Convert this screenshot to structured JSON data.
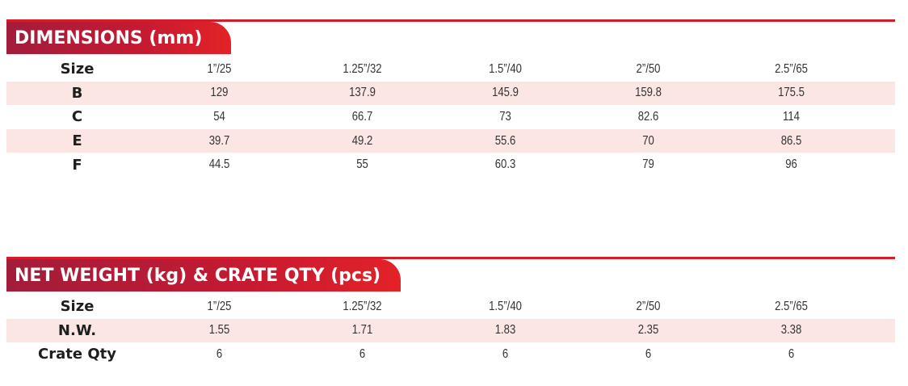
{
  "dimensions": {
    "title": "DIMENSIONS (mm)",
    "rows": [
      {
        "label": "Size",
        "values": [
          "1”/25",
          "1.25”/32",
          "1.5”/40",
          "2”/50",
          "2.5”/65"
        ],
        "shaded": false
      },
      {
        "label": "B",
        "values": [
          "129",
          "137.9",
          "145.9",
          "159.8",
          "175.5"
        ],
        "shaded": true
      },
      {
        "label": "C",
        "values": [
          "54",
          "66.7",
          "73",
          "82.6",
          "114"
        ],
        "shaded": false
      },
      {
        "label": "E",
        "values": [
          "39.7",
          "49.2",
          "55.6",
          "70",
          "86.5"
        ],
        "shaded": true
      },
      {
        "label": "F",
        "values": [
          "44.5",
          "55",
          "60.3",
          "79",
          "96"
        ],
        "shaded": false
      }
    ]
  },
  "weight": {
    "title": "NET WEIGHT (kg) & CRATE QTY (pcs)",
    "rows": [
      {
        "label": "Size",
        "values": [
          "1”/25",
          "1.25”/32",
          "1.5”/40",
          "2”/50",
          "2.5”/65"
        ],
        "shaded": false
      },
      {
        "label": "N.W.",
        "values": [
          "1.55",
          "1.71",
          "1.83",
          "2.35",
          "3.38"
        ],
        "shaded": true
      },
      {
        "label": "Crate Qty",
        "values": [
          "6",
          "6",
          "6",
          "6",
          "6"
        ],
        "shaded": false
      }
    ]
  },
  "colors": {
    "accent": "#d61c2a",
    "banner_start": "#a21d3a",
    "banner_end": "#e42227",
    "row_shade": "#fbe6e3"
  }
}
